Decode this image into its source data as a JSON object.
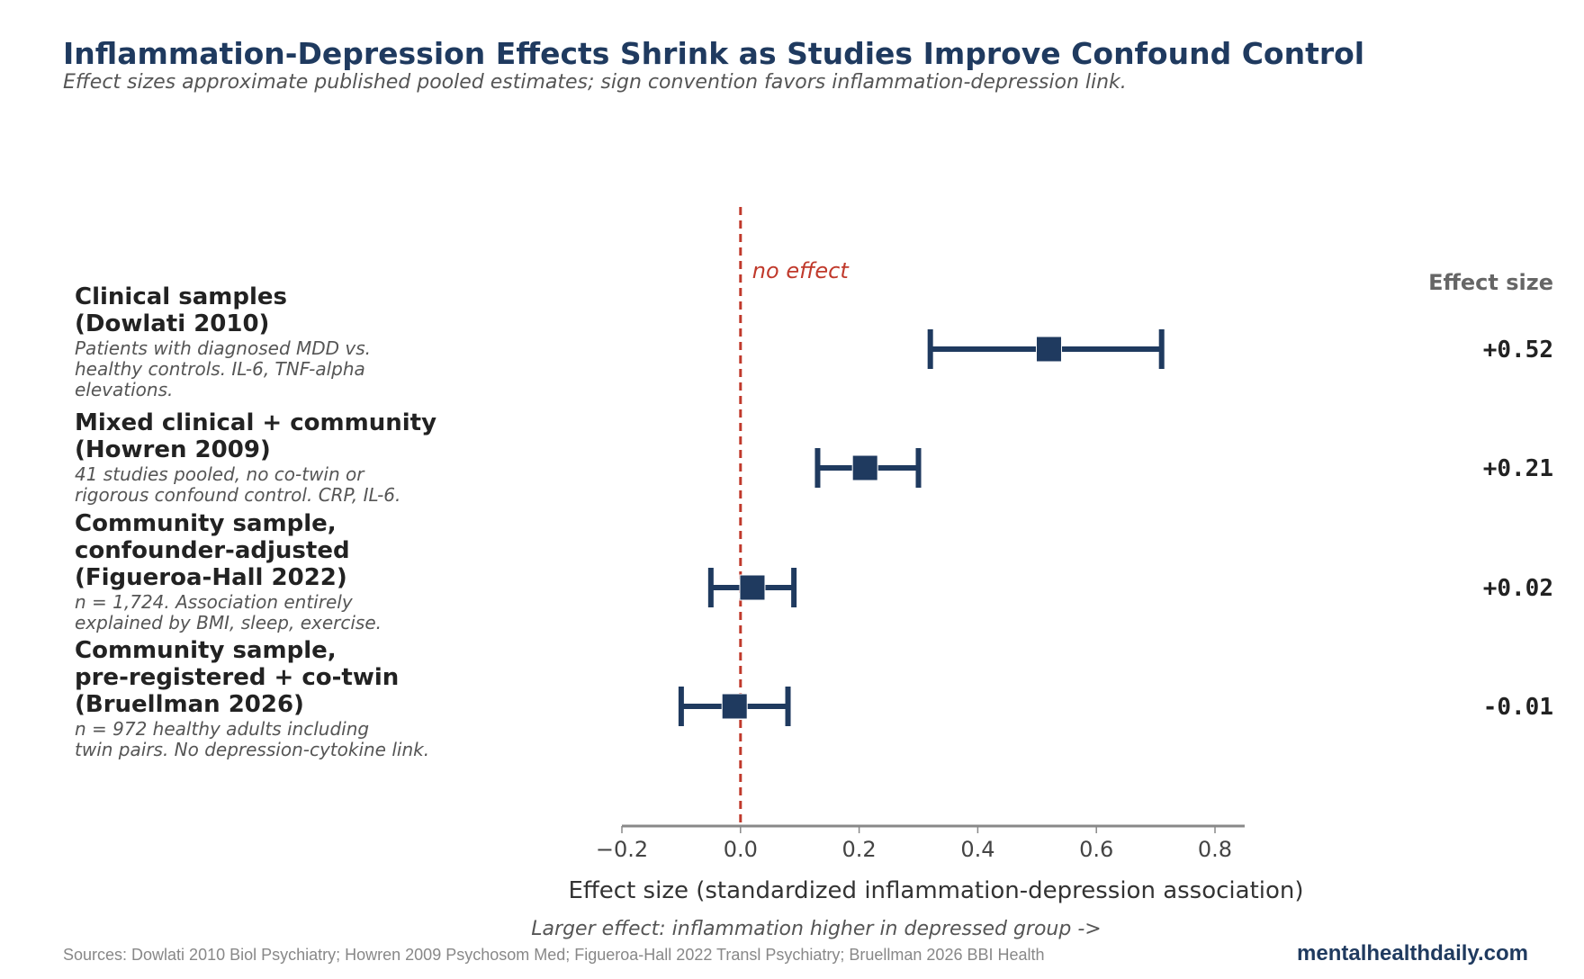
{
  "title": "Inflammation-Depression Effects Shrink as Studies Improve Confound Control",
  "subtitle": "Effect sizes approximate published pooled estimates; sign convention favors inflammation-depression link.",
  "colors": {
    "title": "#1f3a5f",
    "marker": "#1f3a5f",
    "reference_line": "#c0392b",
    "axis": "#888888"
  },
  "chart_data": {
    "type": "forest",
    "xlabel": "Effect size (standardized inflammation-depression association)",
    "x_note": "Larger effect: inflammation higher in depressed group  ->",
    "xlim": [
      -0.2,
      0.85
    ],
    "xticks": [
      -0.2,
      0.0,
      0.2,
      0.4,
      0.6,
      0.8
    ],
    "xtick_labels": [
      "−0.2",
      "0.0",
      "0.2",
      "0.4",
      "0.6",
      "0.8"
    ],
    "reference": {
      "x": 0,
      "label": "no effect"
    },
    "value_column_header": "Effect size",
    "rows": [
      {
        "title": [
          "Clinical samples",
          "(Dowlati 2010)"
        ],
        "description": [
          "Patients with diagnosed MDD vs.",
          "healthy controls. IL-6, TNF-alpha",
          "elevations."
        ],
        "estimate": 0.52,
        "ci": [
          0.32,
          0.71
        ],
        "label": "+0.52"
      },
      {
        "title": [
          "Mixed clinical + community",
          "(Howren 2009)"
        ],
        "description": [
          "41 studies pooled, no co-twin or",
          "rigorous confound control. CRP, IL-6."
        ],
        "estimate": 0.21,
        "ci": [
          0.13,
          0.3
        ],
        "label": "+0.21"
      },
      {
        "title": [
          "Community sample,",
          "confounder-adjusted",
          "(Figueroa-Hall 2022)"
        ],
        "description": [
          "n = 1,724. Association entirely",
          "explained by BMI, sleep, exercise."
        ],
        "estimate": 0.02,
        "ci": [
          -0.05,
          0.09
        ],
        "label": "+0.02"
      },
      {
        "title": [
          "Community sample,",
          "pre-registered + co-twin",
          "(Bruellman 2026)"
        ],
        "description": [
          "n = 972 healthy adults including",
          "twin pairs. No depression-cytokine link."
        ],
        "estimate": -0.01,
        "ci": [
          -0.1,
          0.08
        ],
        "label": "-0.01"
      }
    ]
  },
  "footer": {
    "sources": "Sources: Dowlati 2010 Biol Psychiatry; Howren 2009 Psychosom Med; Figueroa-Hall 2022 Transl Psychiatry; Bruellman 2026 BBI Health",
    "brand": "mentalhealthdaily.com"
  }
}
